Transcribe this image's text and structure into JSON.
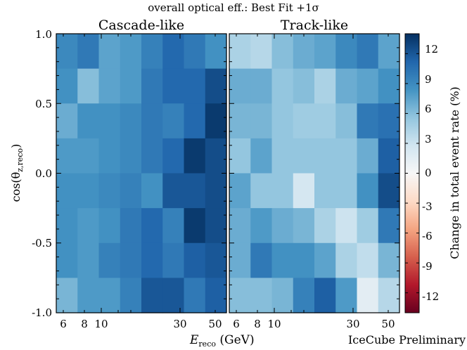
{
  "chart_data": {
    "type": "heatmap",
    "title": "overall optical eff.: Best Fit  +1σ",
    "xlabel_main": "E",
    "xlabel_sub": "reco",
    "xlabel_unit": " (GeV)",
    "ylabel": "cos(θ",
    "ylabel_sub": "z,reco",
    "ylabel_close": ")",
    "x_tick_labels": [
      "6",
      "8",
      "10",
      "30",
      "50"
    ],
    "y_tick_labels": [
      "1.0",
      "0.5",
      "0.0",
      "-0.5",
      "-1.0"
    ],
    "ylim": [
      -1.0,
      1.0
    ],
    "colorbar": {
      "label": "Change in total event rate  (%)",
      "range": [
        -14,
        14
      ],
      "tick_labels": [
        "12",
        "9",
        "6",
        "3",
        "0",
        "-3",
        "-6",
        "-9",
        "-12"
      ],
      "tick_values": [
        12,
        9,
        6,
        3,
        0,
        -3,
        -6,
        -9,
        -12
      ]
    },
    "watermark": "IceCube Preliminary",
    "panels": [
      {
        "title": "Cascade-like",
        "rows_top_to_bottom": [
          [
            9,
            10,
            7.5,
            8,
            9.5,
            11,
            10,
            8.5
          ],
          [
            8.5,
            6,
            7.5,
            8,
            10,
            11,
            11,
            12.5
          ],
          [
            7,
            8.5,
            8.5,
            9,
            10,
            9.5,
            11,
            13.5
          ],
          [
            8,
            8,
            8.5,
            9,
            10,
            11,
            13.5,
            12.5
          ],
          [
            8.5,
            8.5,
            9,
            9.5,
            8.5,
            12,
            12,
            12.5
          ],
          [
            8.5,
            8,
            8.5,
            10,
            11,
            9.5,
            13.5,
            12.5
          ],
          [
            8.5,
            8,
            9.5,
            10,
            11,
            10,
            11.5,
            12
          ],
          [
            6.5,
            8,
            8,
            9.5,
            12,
            12,
            10,
            11.5
          ]
        ]
      },
      {
        "title": "Track-like",
        "rows_top_to_bottom": [
          [
            4.5,
            4,
            6,
            7,
            7.5,
            9,
            10,
            7.5
          ],
          [
            7,
            7,
            5.5,
            6,
            4.5,
            7,
            7.5,
            8.5
          ],
          [
            6.5,
            6.5,
            5.5,
            5,
            5,
            6,
            10,
            10.5
          ],
          [
            5.5,
            7.5,
            5.5,
            5.5,
            5.5,
            5.5,
            7,
            11.5
          ],
          [
            7.5,
            5.5,
            5.5,
            2.5,
            5.5,
            5.5,
            8.5,
            12.5
          ],
          [
            7,
            8,
            7,
            6.5,
            4.5,
            3,
            5,
            10
          ],
          [
            7,
            10,
            8.5,
            8.5,
            7.5,
            4.5,
            3.5,
            6.5
          ],
          [
            6,
            6,
            6.5,
            9.5,
            11.5,
            8,
            1.5,
            4
          ]
        ]
      }
    ]
  }
}
